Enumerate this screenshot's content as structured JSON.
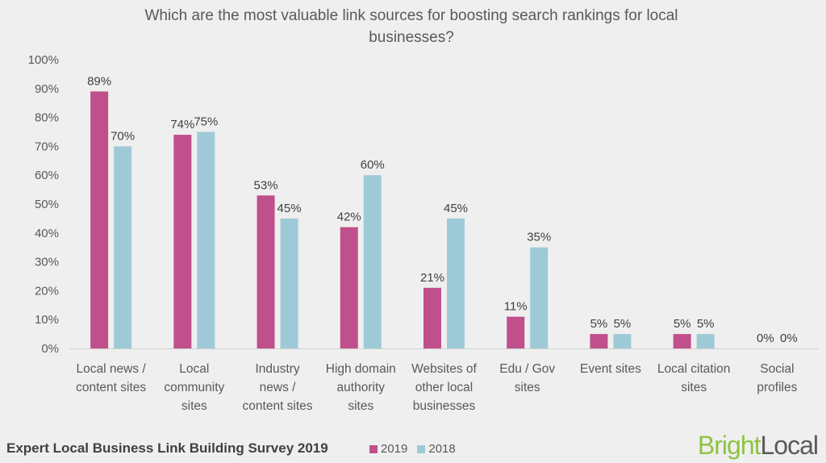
{
  "chart_data": {
    "type": "bar",
    "title": "Which are the most valuable link sources for boosting search rankings for local businesses?",
    "categories": [
      [
        "Local news /",
        "content sites"
      ],
      [
        "Local",
        "community",
        "sites"
      ],
      [
        "Industry",
        "news /",
        "content sites"
      ],
      [
        "High domain",
        "authority",
        "sites"
      ],
      [
        "Websites of",
        "other local",
        "businesses"
      ],
      [
        "Edu / Gov",
        "sites"
      ],
      [
        "Event sites"
      ],
      [
        "Local citation",
        "sites"
      ],
      [
        "Social",
        "profiles"
      ]
    ],
    "series": [
      {
        "name": "2019",
        "color": "#c0508c",
        "values": [
          89,
          74,
          53,
          42,
          21,
          11,
          5,
          5,
          0
        ],
        "labels": [
          "89%",
          "74%",
          "53%",
          "42%",
          "21%",
          "11%",
          "5%",
          "5%",
          "0%"
        ]
      },
      {
        "name": "2018",
        "color": "#9ecad8",
        "values": [
          70,
          75,
          45,
          60,
          45,
          35,
          5,
          5,
          0
        ],
        "labels": [
          "70%",
          "75%",
          "45%",
          "60%",
          "45%",
          "35%",
          "5%",
          "5%",
          "0%"
        ]
      }
    ],
    "ylim": [
      0,
      100
    ],
    "yticks": [
      "0%",
      "10%",
      "20%",
      "30%",
      "40%",
      "50%",
      "60%",
      "70%",
      "80%",
      "90%",
      "100%"
    ],
    "legend_position": "bottom",
    "grid": false
  },
  "footer": {
    "survey": "Expert Local Business Link Building Survey 2019",
    "brand_part1": "Bright",
    "brand_part2": "Local"
  }
}
